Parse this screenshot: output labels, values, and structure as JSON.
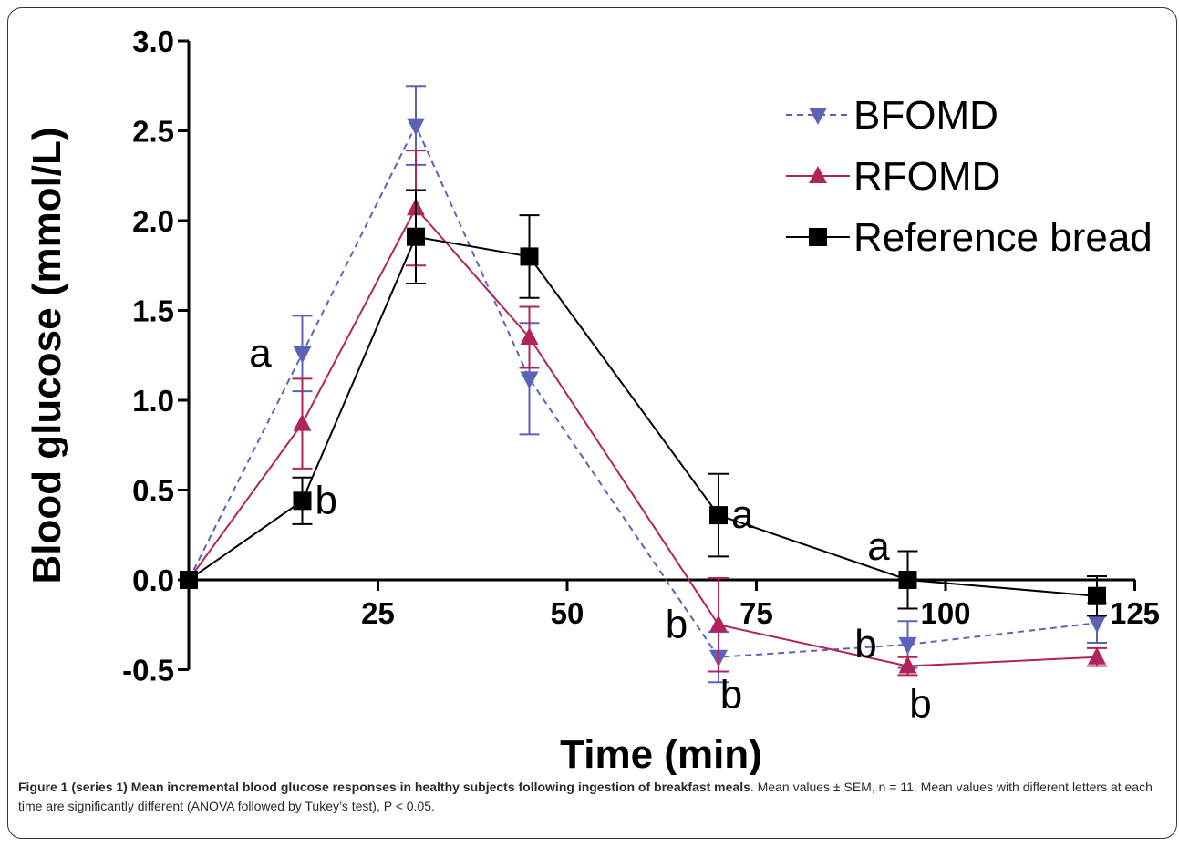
{
  "chart_data": {
    "type": "line",
    "xlabel": "Time (min)",
    "ylabel": "Blood glucose (mmol/L)",
    "xlim": [
      0,
      130
    ],
    "ylim": [
      -0.5,
      3.0
    ],
    "xticks": [
      25,
      50,
      75,
      100,
      125
    ],
    "xtick_labels": [
      "25",
      "50",
      "75",
      "100",
      "125"
    ],
    "yticks": [
      -0.5,
      0.0,
      0.5,
      1.0,
      1.5,
      2.0,
      2.5,
      3.0
    ],
    "ytick_labels": [
      "-0.5",
      "0.0",
      "0.5",
      "1.0",
      "1.5",
      "2.0",
      "2.5",
      "3.0"
    ],
    "grid": false,
    "legend_position": "top-right",
    "series": [
      {
        "name": "BFOMD",
        "color": "#5b63b8",
        "dash": true,
        "marker": "triangle-down",
        "x": [
          0,
          15,
          30,
          45,
          70,
          95,
          120
        ],
        "y": [
          0.0,
          1.26,
          2.53,
          1.12,
          -0.43,
          -0.36,
          -0.24
        ],
        "err": [
          0.0,
          0.21,
          0.22,
          0.31,
          0.14,
          0.13,
          0.11
        ]
      },
      {
        "name": "RFOMD",
        "color": "#b0245a",
        "dash": false,
        "marker": "triangle-up",
        "x": [
          0,
          15,
          30,
          45,
          70,
          95,
          120
        ],
        "y": [
          0.0,
          0.87,
          2.07,
          1.35,
          -0.25,
          -0.48,
          -0.43
        ],
        "err": [
          0.0,
          0.25,
          0.32,
          0.17,
          0.26,
          0.05,
          0.05
        ]
      },
      {
        "name": "Reference bread",
        "color": "#000000",
        "dash": false,
        "marker": "square",
        "x": [
          0,
          15,
          30,
          45,
          70,
          95,
          120
        ],
        "y": [
          0.0,
          0.44,
          1.91,
          1.8,
          0.36,
          0.0,
          -0.09
        ],
        "err": [
          0.0,
          0.13,
          0.26,
          0.23,
          0.23,
          0.16,
          0.11
        ]
      }
    ],
    "annotations": [
      {
        "text": "a",
        "x": 15,
        "y": 1.26,
        "anchor": "left"
      },
      {
        "text": "b",
        "x": 15,
        "y": 0.44,
        "anchor": "right"
      },
      {
        "text": "a",
        "x": 70,
        "y": 0.36,
        "anchor": "right"
      },
      {
        "text": "b",
        "x": 70,
        "y": -0.25,
        "anchor": "left"
      },
      {
        "text": "b",
        "x": 70,
        "y": -0.43,
        "anchor": "below-right"
      },
      {
        "text": "a",
        "x": 95,
        "y": 0.0,
        "anchor": "above-left"
      },
      {
        "text": "b",
        "x": 95,
        "y": -0.36,
        "anchor": "left"
      },
      {
        "text": "b",
        "x": 95,
        "y": -0.48,
        "anchor": "below-right"
      }
    ]
  },
  "caption": {
    "bold": "Figure 1 (series 1) Mean incremental blood glucose responses in healthy subjects following ingestion of breakfast meals",
    "rest": ". Mean values ± SEM, n = 11. Mean values with different letters at each time are significantly different (ANOVA followed by Tukey’s test), P < 0.05."
  }
}
